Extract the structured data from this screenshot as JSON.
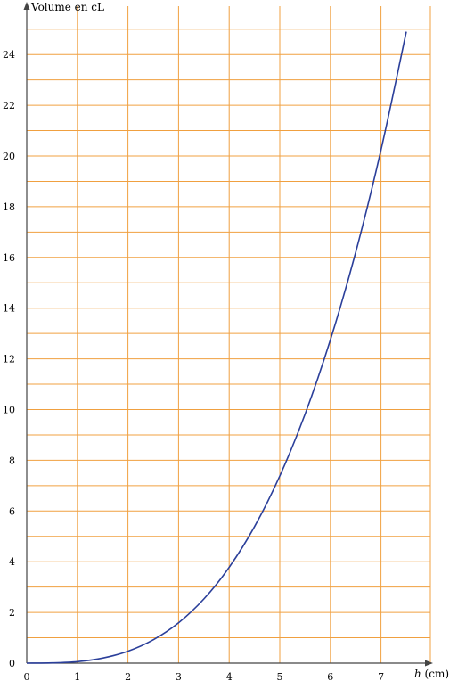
{
  "chart_data": {
    "type": "line",
    "title": "",
    "ylabel": "Volume en cL",
    "xlabel_var": "h",
    "xlabel_unit": " (cm)",
    "xlim": [
      0,
      8
    ],
    "ylim": [
      0,
      25
    ],
    "x_ticks": [
      0,
      1,
      2,
      3,
      4,
      5,
      6,
      7
    ],
    "y_ticks": [
      0,
      2,
      4,
      6,
      8,
      10,
      12,
      14,
      16,
      18,
      20,
      22,
      24
    ],
    "grid": true,
    "grid_x_step": 1,
    "grid_y_step": 1,
    "colors": {
      "grid": "#f0a040",
      "curve": "#2b3f9a",
      "axis": "#444444"
    },
    "series": [
      {
        "x": [
          0,
          0.5,
          1,
          1.5,
          2,
          2.5,
          3,
          3.5,
          4,
          4.5,
          5,
          5.5,
          6,
          6.5,
          7,
          7.5
        ],
        "y": [
          0,
          0.01,
          0.06,
          0.2,
          0.47,
          0.92,
          1.59,
          2.53,
          3.78,
          5.38,
          7.38,
          9.82,
          12.75,
          16.2,
          20.24,
          24.9
        ]
      }
    ]
  }
}
